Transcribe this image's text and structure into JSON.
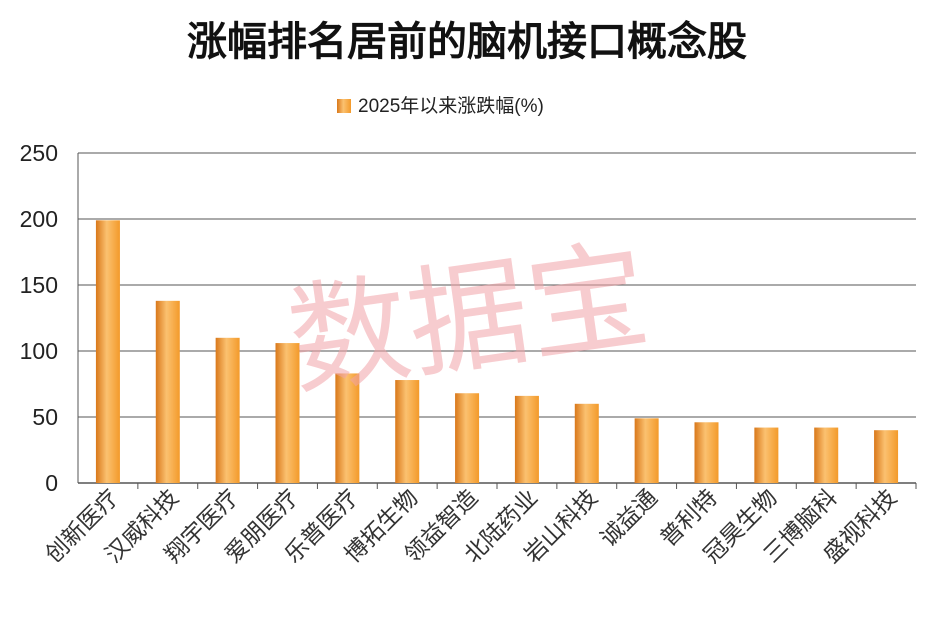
{
  "watermark": "数据宝",
  "colors": {
    "bar_light": "#fbc170",
    "bar_mid": "#f39a2a",
    "bar_dark": "#d9781a",
    "grid": "#555555",
    "watermark": "#f2a3a8"
  },
  "chart_data": {
    "type": "bar",
    "title": "涨幅排名居前的脑机接口概念股",
    "categories": [
      "创新医疗",
      "汉威科技",
      "翔宇医疗",
      "爱朋医疗",
      "乐普医疗",
      "博拓生物",
      "领益智造",
      "北陆药业",
      "岩山科技",
      "诚益通",
      "普利特",
      "冠昊生物",
      "三博脑科",
      "盛视科技"
    ],
    "series": [
      {
        "name": "2025年以来涨跌幅(%)",
        "values": [
          199,
          138,
          110,
          106,
          83,
          78,
          68,
          66,
          60,
          49,
          46,
          42,
          42,
          40
        ]
      }
    ],
    "ylim": [
      0,
      250
    ],
    "yticks": [
      "0",
      "50",
      "100",
      "150",
      "200",
      "250"
    ],
    "grid": true,
    "legend": "top-center"
  }
}
